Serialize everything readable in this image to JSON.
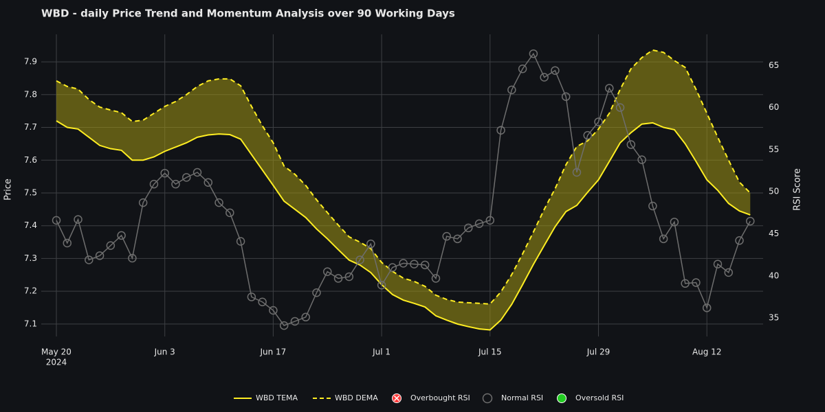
{
  "chart_data": {
    "type": "line",
    "title": "WBD - daily Price Trend and Momentum Analysis over 90 Working Days",
    "y_label": "Price",
    "y2_label": "RSI Score",
    "x": [
      "2024-05-20",
      "2024-05-21",
      "2024-05-22",
      "2024-05-23",
      "2024-05-24",
      "2024-05-27",
      "2024-05-28",
      "2024-05-29",
      "2024-05-30",
      "2024-05-31",
      "2024-06-03",
      "2024-06-04",
      "2024-06-05",
      "2024-06-06",
      "2024-06-07",
      "2024-06-10",
      "2024-06-11",
      "2024-06-12",
      "2024-06-13",
      "2024-06-14",
      "2024-06-17",
      "2024-06-18",
      "2024-06-19",
      "2024-06-20",
      "2024-06-21",
      "2024-06-24",
      "2024-06-25",
      "2024-06-26",
      "2024-06-27",
      "2024-06-28",
      "2024-07-01",
      "2024-07-02",
      "2024-07-03",
      "2024-07-04",
      "2024-07-05",
      "2024-07-08",
      "2024-07-09",
      "2024-07-10",
      "2024-07-11",
      "2024-07-12",
      "2024-07-15",
      "2024-07-16",
      "2024-07-17",
      "2024-07-18",
      "2024-07-19",
      "2024-07-22",
      "2024-07-23",
      "2024-07-24",
      "2024-07-25",
      "2024-07-26",
      "2024-07-29",
      "2024-07-30",
      "2024-07-31",
      "2024-08-01",
      "2024-08-02",
      "2024-08-05",
      "2024-08-06",
      "2024-08-07",
      "2024-08-08",
      "2024-08-09",
      "2024-08-12",
      "2024-08-13",
      "2024-08-14",
      "2024-08-15",
      "2024-08-16"
    ],
    "xticks": [
      {
        "value": "2024-05-20",
        "label": "May 20"
      },
      {
        "value": "2024-06-03",
        "label": "Jun 3"
      },
      {
        "value": "2024-06-17",
        "label": "Jun 17"
      },
      {
        "value": "2024-07-01",
        "label": "Jul 1"
      },
      {
        "value": "2024-07-15",
        "label": "Jul 15"
      },
      {
        "value": "2024-07-29",
        "label": "Jul 29"
      },
      {
        "value": "2024-08-12",
        "label": "Aug 12"
      }
    ],
    "x_year": "2024",
    "ylim": [
      7.062,
      7.984
    ],
    "yticks": [
      7.1,
      7.2,
      7.3,
      7.4,
      7.5,
      7.6,
      7.7,
      7.8,
      7.9
    ],
    "y2lim": [
      32.8,
      68.7
    ],
    "y2ticks": [
      35,
      40,
      45,
      50,
      55,
      60,
      65
    ],
    "grid": true,
    "legend": "bottom",
    "series": [
      {
        "name": "WBD TEMA",
        "color": "#ffee22",
        "dash": false,
        "fill_to_next": true,
        "fill_color": "rgba(160,150,20,0.55)",
        "values": [
          7.72,
          7.7,
          7.695,
          7.67,
          7.645,
          7.635,
          7.63,
          7.6,
          7.6,
          7.61,
          7.627,
          7.64,
          7.653,
          7.67,
          7.677,
          7.68,
          7.678,
          7.664,
          7.617,
          7.57,
          7.523,
          7.475,
          7.45,
          7.425,
          7.39,
          7.36,
          7.327,
          7.295,
          7.28,
          7.257,
          7.22,
          7.19,
          7.173,
          7.163,
          7.152,
          7.125,
          7.112,
          7.1,
          7.092,
          7.085,
          7.082,
          7.112,
          7.16,
          7.22,
          7.282,
          7.34,
          7.397,
          7.443,
          7.462,
          7.502,
          7.54,
          7.596,
          7.653,
          7.684,
          7.71,
          7.714,
          7.7,
          7.693,
          7.65,
          7.596,
          7.54,
          7.508,
          7.468,
          7.445,
          7.433
        ]
      },
      {
        "name": "WBD DEMA",
        "color": "#ffee22",
        "dash": true,
        "values": [
          7.842,
          7.825,
          7.817,
          7.785,
          7.762,
          7.753,
          7.745,
          7.718,
          7.722,
          7.743,
          7.764,
          7.779,
          7.8,
          7.825,
          7.842,
          7.848,
          7.848,
          7.827,
          7.764,
          7.705,
          7.653,
          7.582,
          7.557,
          7.523,
          7.479,
          7.44,
          7.402,
          7.366,
          7.35,
          7.33,
          7.288,
          7.261,
          7.24,
          7.23,
          7.215,
          7.188,
          7.175,
          7.167,
          7.165,
          7.163,
          7.161,
          7.198,
          7.251,
          7.314,
          7.381,
          7.45,
          7.513,
          7.586,
          7.642,
          7.659,
          7.695,
          7.743,
          7.816,
          7.879,
          7.913,
          7.936,
          7.929,
          7.904,
          7.883,
          7.816,
          7.743,
          7.67,
          7.6,
          7.533,
          7.5
        ]
      },
      {
        "name": "Overbought RSI",
        "color": "#ff3b3b",
        "marker": "x"
      },
      {
        "name": "Normal RSI",
        "color": "#6e6e6e",
        "marker": "open",
        "axis": "y2",
        "values": [
          46.6,
          43.9,
          46.7,
          41.9,
          42.4,
          43.6,
          44.8,
          42.1,
          48.7,
          50.9,
          52.2,
          50.9,
          51.7,
          52.3,
          51.1,
          48.7,
          47.5,
          44.1,
          37.5,
          36.9,
          35.9,
          34.1,
          34.6,
          35.1,
          38.0,
          40.5,
          39.7,
          39.9,
          41.9,
          43.8,
          38.9,
          41.0,
          41.5,
          41.4,
          41.3,
          39.7,
          44.7,
          44.4,
          45.7,
          46.2,
          46.6,
          57.3,
          62.1,
          64.6,
          66.4,
          63.6,
          64.4,
          61.3,
          52.3,
          56.7,
          58.3,
          62.3,
          60.0,
          55.6,
          53.8,
          48.3,
          44.4,
          46.4,
          39.1,
          39.2,
          36.2,
          41.4,
          40.4,
          44.2,
          46.5
        ]
      },
      {
        "name": "Oversold RSI",
        "color": "#22cc22",
        "marker": "filled"
      }
    ]
  }
}
